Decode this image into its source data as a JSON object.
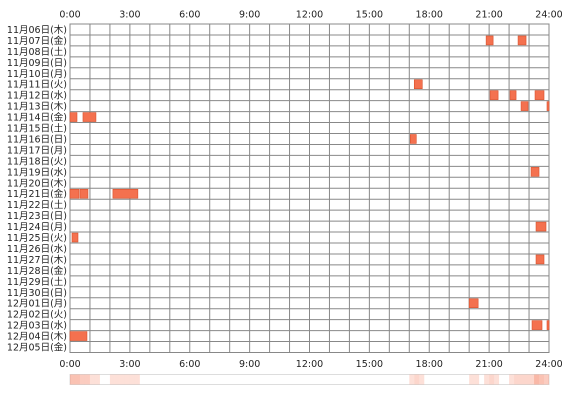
{
  "chart_data": {
    "type": "timeline",
    "xlim": [
      0,
      24
    ],
    "xticks": [
      {
        "value": 0,
        "label": "0:00"
      },
      {
        "value": 3,
        "label": "3:00"
      },
      {
        "value": 6,
        "label": "6:00"
      },
      {
        "value": 9,
        "label": "9:00"
      },
      {
        "value": 12,
        "label": "12:00"
      },
      {
        "value": 15,
        "label": "15:00"
      },
      {
        "value": 18,
        "label": "18:00"
      },
      {
        "value": 21,
        "label": "21:00"
      },
      {
        "value": 24,
        "label": "24:00"
      }
    ],
    "grid_interval": 1,
    "color": "#f4714f",
    "rows": [
      {
        "label": "11月06日(木)",
        "blocks": []
      },
      {
        "label": "11月07日(金)",
        "blocks": [
          [
            20.85,
            21.2
          ],
          [
            22.45,
            22.85
          ]
        ]
      },
      {
        "label": "11月08日(土)",
        "blocks": []
      },
      {
        "label": "11月09日(日)",
        "blocks": []
      },
      {
        "label": "11月10日(月)",
        "blocks": []
      },
      {
        "label": "11月11日(火)",
        "blocks": [
          [
            17.25,
            17.65
          ]
        ]
      },
      {
        "label": "11月12日(水)",
        "blocks": [
          [
            21.05,
            21.45
          ],
          [
            22.05,
            22.35
          ],
          [
            23.3,
            23.75
          ]
        ]
      },
      {
        "label": "11月13日(木)",
        "blocks": [
          [
            22.6,
            22.95
          ],
          [
            23.9,
            24
          ]
        ]
      },
      {
        "label": "11月14日(金)",
        "blocks": [
          [
            0,
            0.35
          ],
          [
            0.65,
            1.3
          ]
        ]
      },
      {
        "label": "11月15日(土)",
        "blocks": []
      },
      {
        "label": "11月16日(日)",
        "blocks": [
          [
            17.05,
            17.35
          ]
        ]
      },
      {
        "label": "11月17日(月)",
        "blocks": []
      },
      {
        "label": "11月18日(火)",
        "blocks": []
      },
      {
        "label": "11月19日(水)",
        "blocks": [
          [
            23.1,
            23.5
          ]
        ]
      },
      {
        "label": "11月20日(木)",
        "blocks": []
      },
      {
        "label": "11月21日(金)",
        "blocks": [
          [
            0,
            0.45
          ],
          [
            0.5,
            0.9
          ],
          [
            2.15,
            3.4
          ]
        ]
      },
      {
        "label": "11月22日(土)",
        "blocks": []
      },
      {
        "label": "11月23日(日)",
        "blocks": []
      },
      {
        "label": "11月24日(月)",
        "blocks": [
          [
            23.35,
            23.85
          ]
        ]
      },
      {
        "label": "11月25日(火)",
        "blocks": [
          [
            0.1,
            0.4
          ]
        ]
      },
      {
        "label": "11月26日(水)",
        "blocks": []
      },
      {
        "label": "11月27日(木)",
        "blocks": [
          [
            23.35,
            23.75
          ]
        ]
      },
      {
        "label": "11月28日(金)",
        "blocks": []
      },
      {
        "label": "11月29日(土)",
        "blocks": []
      },
      {
        "label": "11月30日(日)",
        "blocks": []
      },
      {
        "label": "12月01日(月)",
        "blocks": [
          [
            20,
            20.45
          ]
        ]
      },
      {
        "label": "12月02日(火)",
        "blocks": []
      },
      {
        "label": "12月03日(水)",
        "blocks": [
          [
            23.15,
            23.65
          ],
          [
            23.9,
            24
          ]
        ]
      },
      {
        "label": "12月04日(木)",
        "blocks": [
          [
            0,
            0.85
          ]
        ]
      },
      {
        "label": "12月05日(金)",
        "blocks": []
      }
    ]
  }
}
